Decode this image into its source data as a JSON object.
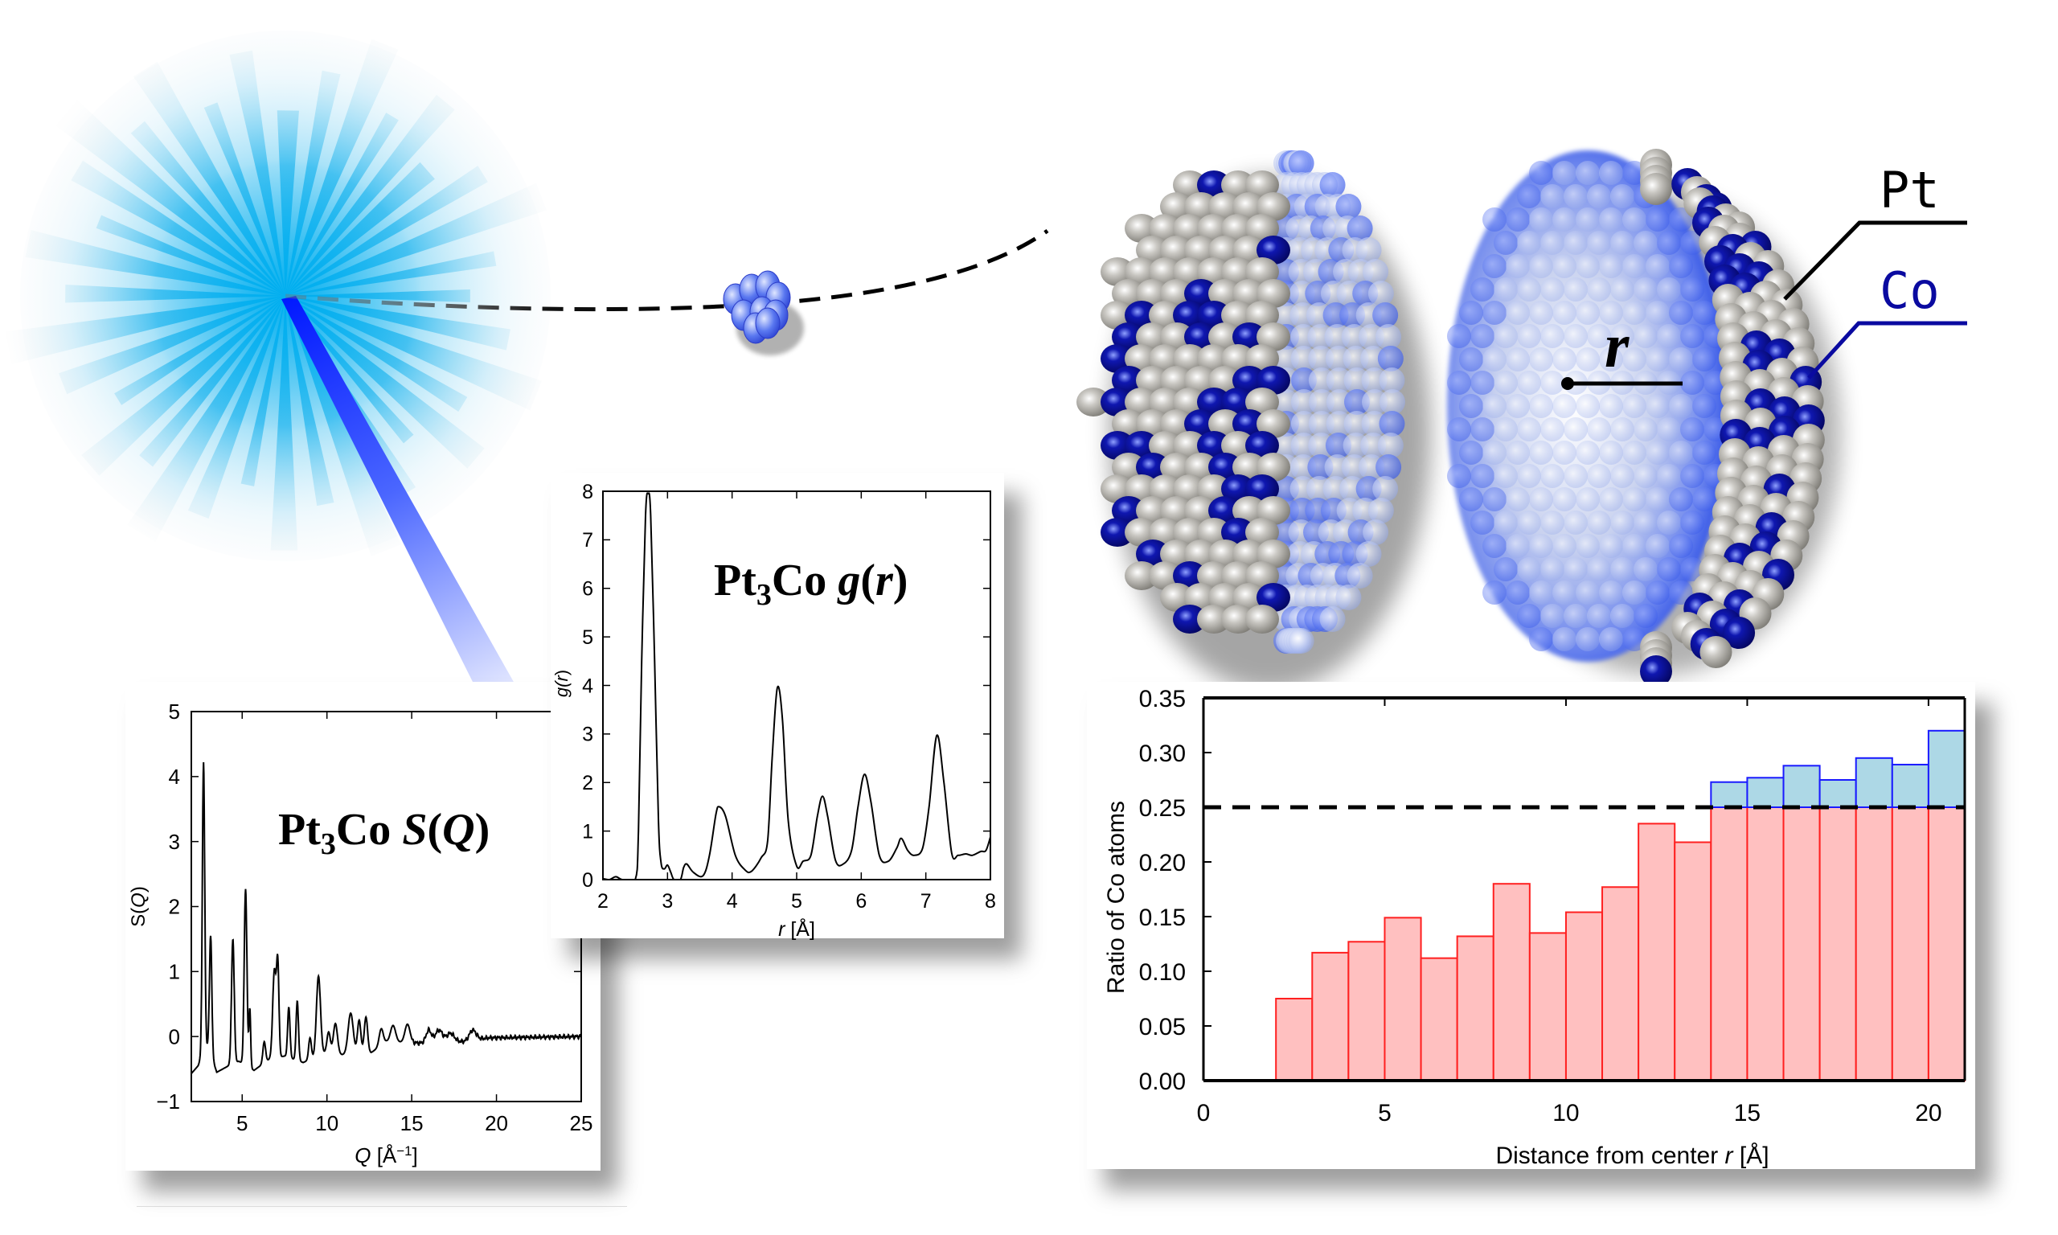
{
  "figure": {
    "burst": {
      "color_core": "#00aeef",
      "color_rays": "#5fc8f0",
      "beam_color": "#0022ff"
    },
    "labels": {
      "pt": "Pt",
      "co": "Co",
      "radius": "r"
    },
    "colors": {
      "pt_atom": "#b8b6b0",
      "co_atom": "#0a0aa0",
      "pt_label": "#000000",
      "co_label": "#0a0aa0"
    }
  },
  "sq_panel": {
    "title_main": "Pt",
    "title_sub": "3",
    "title_rest": "Co ",
    "title_func": "S",
    "title_arg": "Q"
  },
  "gr_panel": {
    "title_main": "Pt",
    "title_sub": "3",
    "title_rest": "Co ",
    "title_func": "g",
    "title_arg": "r"
  },
  "chart_data": [
    {
      "type": "line",
      "title": "Pt3Co S(Q)",
      "xlabel": "Q [Å⁻¹]",
      "ylabel": "S(Q)",
      "xlim": [
        2,
        25
      ],
      "ylim": [
        -1,
        5
      ],
      "xticks": [
        5,
        10,
        15,
        20,
        25
      ],
      "yticks": [
        -1,
        0,
        1,
        2,
        3,
        4,
        5
      ],
      "ytick_labels": [
        "−1",
        "0",
        "1",
        "2",
        "3",
        "4",
        "5"
      ],
      "grid": false,
      "peaks": [
        {
          "x": 2.72,
          "y": 4.22,
          "w": 0.07
        },
        {
          "x": 3.14,
          "y": 1.55,
          "w": 0.07
        },
        {
          "x": 4.45,
          "y": 1.5,
          "w": 0.08
        },
        {
          "x": 5.2,
          "y": 2.27,
          "w": 0.08
        },
        {
          "x": 5.45,
          "y": 0.42,
          "w": 0.05
        },
        {
          "x": 6.3,
          "y": -0.08,
          "w": 0.08
        },
        {
          "x": 6.9,
          "y": 1.02,
          "w": 0.1
        },
        {
          "x": 7.1,
          "y": 1.06,
          "w": 0.07
        },
        {
          "x": 7.75,
          "y": 0.45,
          "w": 0.07
        },
        {
          "x": 8.25,
          "y": 0.55,
          "w": 0.07
        },
        {
          "x": 9.0,
          "y": -0.02,
          "w": 0.08
        },
        {
          "x": 9.5,
          "y": 0.93,
          "w": 0.12
        },
        {
          "x": 10.1,
          "y": 0.07,
          "w": 0.1
        },
        {
          "x": 10.5,
          "y": 0.2,
          "w": 0.12
        },
        {
          "x": 11.4,
          "y": 0.36,
          "w": 0.15
        },
        {
          "x": 11.9,
          "y": 0.25,
          "w": 0.1
        },
        {
          "x": 12.3,
          "y": 0.3,
          "w": 0.1
        },
        {
          "x": 13.2,
          "y": 0.12,
          "w": 0.12
        },
        {
          "x": 13.9,
          "y": 0.17,
          "w": 0.15
        },
        {
          "x": 14.75,
          "y": 0.19,
          "w": 0.15
        },
        {
          "x": 16.0,
          "y": 0.1,
          "w": 0.15
        },
        {
          "x": 16.6,
          "y": 0.1,
          "w": 0.2
        },
        {
          "x": 17.3,
          "y": 0.05,
          "w": 0.2
        },
        {
          "x": 18.6,
          "y": 0.1,
          "w": 0.2
        }
      ],
      "baseline_points": [
        [
          2,
          -0.57
        ],
        [
          2.4,
          -0.45
        ],
        [
          2.6,
          -0.3
        ],
        [
          3.0,
          -0.15
        ],
        [
          3.5,
          -0.55
        ],
        [
          4.2,
          -0.45
        ],
        [
          4.8,
          -0.38
        ],
        [
          5.7,
          -0.52
        ],
        [
          6.6,
          -0.35
        ],
        [
          7.5,
          -0.3
        ],
        [
          8.6,
          -0.4
        ],
        [
          9.9,
          -0.25
        ],
        [
          10.9,
          -0.28
        ],
        [
          12.6,
          -0.25
        ],
        [
          13.5,
          -0.08
        ],
        [
          15.5,
          -0.1
        ],
        [
          17.0,
          -0.05
        ],
        [
          18.0,
          -0.08
        ],
        [
          19.5,
          -0.02
        ],
        [
          25,
          0.0
        ]
      ]
    },
    {
      "type": "line",
      "title": "Pt3Co g(r)",
      "xlabel": "r [Å]",
      "ylabel": "g(r)",
      "xlim": [
        2,
        8
      ],
      "ylim": [
        0,
        8
      ],
      "xticks": [
        2,
        3,
        4,
        5,
        6,
        7,
        8
      ],
      "yticks": [
        0,
        1,
        2,
        3,
        4,
        5,
        6,
        7,
        8
      ],
      "grid": false,
      "points": [
        [
          2.0,
          0.02
        ],
        [
          2.1,
          0.0
        ],
        [
          2.2,
          0.06
        ],
        [
          2.3,
          0.0
        ],
        [
          2.5,
          0.0
        ],
        [
          2.55,
          1.0
        ],
        [
          2.6,
          4.5
        ],
        [
          2.66,
          7.5
        ],
        [
          2.7,
          7.95
        ],
        [
          2.74,
          7.5
        ],
        [
          2.8,
          4.5
        ],
        [
          2.86,
          1.2
        ],
        [
          2.9,
          0.35
        ],
        [
          2.95,
          0.22
        ],
        [
          3.0,
          0.3
        ],
        [
          3.05,
          0.15
        ],
        [
          3.1,
          0.0
        ],
        [
          3.2,
          0.0
        ],
        [
          3.25,
          0.25
        ],
        [
          3.3,
          0.32
        ],
        [
          3.4,
          0.15
        ],
        [
          3.55,
          0.08
        ],
        [
          3.65,
          0.5
        ],
        [
          3.75,
          1.35
        ],
        [
          3.8,
          1.5
        ],
        [
          3.9,
          1.3
        ],
        [
          4.05,
          0.5
        ],
        [
          4.2,
          0.2
        ],
        [
          4.3,
          0.17
        ],
        [
          4.45,
          0.45
        ],
        [
          4.55,
          0.8
        ],
        [
          4.62,
          2.5
        ],
        [
          4.7,
          3.95
        ],
        [
          4.78,
          3.3
        ],
        [
          4.87,
          1.2
        ],
        [
          5.0,
          0.28
        ],
        [
          5.1,
          0.38
        ],
        [
          5.22,
          0.5
        ],
        [
          5.32,
          1.3
        ],
        [
          5.4,
          1.72
        ],
        [
          5.48,
          1.3
        ],
        [
          5.6,
          0.4
        ],
        [
          5.72,
          0.32
        ],
        [
          5.85,
          0.6
        ],
        [
          5.95,
          1.5
        ],
        [
          6.05,
          2.17
        ],
        [
          6.15,
          1.6
        ],
        [
          6.28,
          0.5
        ],
        [
          6.42,
          0.38
        ],
        [
          6.55,
          0.65
        ],
        [
          6.62,
          0.85
        ],
        [
          6.72,
          0.6
        ],
        [
          6.82,
          0.5
        ],
        [
          6.95,
          0.65
        ],
        [
          7.05,
          1.5
        ],
        [
          7.17,
          2.97
        ],
        [
          7.28,
          2.0
        ],
        [
          7.4,
          0.55
        ],
        [
          7.5,
          0.5
        ],
        [
          7.62,
          0.53
        ],
        [
          7.72,
          0.5
        ],
        [
          7.85,
          0.58
        ],
        [
          7.93,
          0.6
        ],
        [
          8.0,
          0.88
        ]
      ]
    },
    {
      "type": "bar",
      "title": "",
      "xlabel": "Distance from center r [Å]",
      "ylabel": "Ratio of Co atoms",
      "xlim": [
        0,
        21
      ],
      "ylim": [
        0.0,
        0.35
      ],
      "xticks": [
        0,
        5,
        10,
        15,
        20
      ],
      "yticks": [
        0.0,
        0.05,
        0.1,
        0.15,
        0.2,
        0.25,
        0.3,
        0.35
      ],
      "ytick_labels": [
        "0.00",
        "0.05",
        "0.10",
        "0.15",
        "0.20",
        "0.25",
        "0.30",
        "0.35"
      ],
      "grid": false,
      "reference_line": {
        "y": 0.25,
        "style": "dashed",
        "color": "#000000"
      },
      "bin_edges": [
        2,
        3,
        4,
        5,
        6,
        7,
        8,
        9,
        10,
        11,
        12,
        13,
        14,
        15,
        16,
        17,
        18,
        19,
        20,
        21
      ],
      "values": [
        0.075,
        0.117,
        0.127,
        0.149,
        0.112,
        0.132,
        0.18,
        0.135,
        0.154,
        0.177,
        0.235,
        0.218,
        0.273,
        0.277,
        0.288,
        0.275,
        0.295,
        0.289,
        0.32
      ],
      "below_color_fill": "#ffc0c0",
      "below_color_edge": "#ff2020",
      "above_color_fill": "#add8e6",
      "above_color_edge": "#1a1aff"
    }
  ]
}
